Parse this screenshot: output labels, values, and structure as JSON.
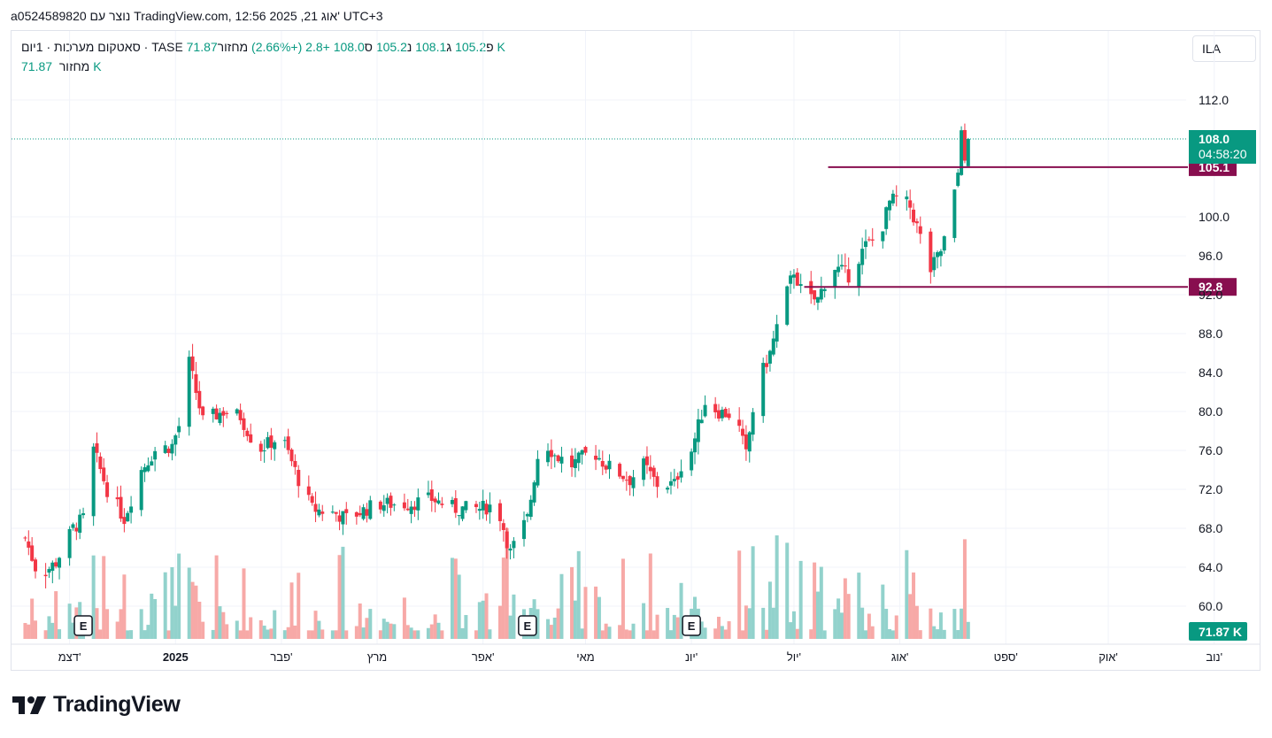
{
  "header": {
    "published_by": "a0524589820 נוצר עם TradingView.com, 12:56 2025 ,21 אוג' UTC+3"
  },
  "legend": {
    "symbol": "סאטקום מערכות · 1יום · TASE",
    "open_label": "פ",
    "open": "105.2",
    "high_label": "ג",
    "high": "108.1",
    "low_label": "נ",
    "low": "105.2",
    "close_label": "ס",
    "close": "108.0",
    "change": "+2.8 (+2.66%)",
    "volume_label": "מחזור",
    "volume": "71.87 K"
  },
  "volume_legend": {
    "label": "מחזור",
    "value": "71.87 K"
  },
  "currency_button": "ILA",
  "branding": {
    "name": "TradingView"
  },
  "colors": {
    "up": "#089981",
    "down": "#f23645",
    "level_line": "#880e4f",
    "volume_up": "#92d2cc",
    "volume_down": "#f7a9a7"
  },
  "chart_data": {
    "type": "candlestick",
    "interval": "1D",
    "y_ticks": [
      "112.0",
      "100.0",
      "96.0",
      "92.0",
      "88.0",
      "84.0",
      "80.0",
      "76.0",
      "72.0",
      "68.0",
      "64.0",
      "60.0"
    ],
    "x_ticks": [
      "דצמ'",
      "2025",
      "פבר'",
      "מרץ",
      "אפר'",
      "מאי",
      "יונ'",
      "יול'",
      "אוג'",
      "ספט'",
      "אוק'",
      "נוב'"
    ],
    "last_price": {
      "value": 108.0,
      "label": "108.0",
      "countdown": "04:58:20"
    },
    "horizontal_lines": [
      {
        "value": 105.1,
        "label": "105.1"
      },
      {
        "value": 92.8,
        "label": "92.8"
      }
    ],
    "earnings_markers": [
      {
        "date": "2024-12-05",
        "label": "E"
      },
      {
        "date": "2025-04-14",
        "label": "E"
      },
      {
        "date": "2025-06-01",
        "label": "E"
      }
    ],
    "volume_last_label": "71.87 K",
    "price_path": [
      [
        "2024-11-18",
        67.0
      ],
      [
        "2024-11-22",
        63.0
      ],
      [
        "2024-11-27",
        64.5
      ],
      [
        "2024-12-02",
        68.0
      ],
      [
        "2024-12-05",
        69.0
      ],
      [
        "2024-12-07",
        77.0
      ],
      [
        "2024-12-12",
        72.0
      ],
      [
        "2024-12-17",
        69.0
      ],
      [
        "2024-12-22",
        74.0
      ],
      [
        "2024-12-26",
        76.0
      ],
      [
        "2024-12-31",
        76.5
      ],
      [
        "2025-01-02",
        78.5
      ],
      [
        "2025-01-05",
        85.0
      ],
      [
        "2025-01-09",
        79.0
      ],
      [
        "2025-01-15",
        80.0
      ],
      [
        "2025-01-20",
        79.5
      ],
      [
        "2025-01-25",
        76.0
      ],
      [
        "2025-02-01",
        77.5
      ],
      [
        "2025-02-06",
        73.0
      ],
      [
        "2025-02-10",
        70.0
      ],
      [
        "2025-02-17",
        69.5
      ],
      [
        "2025-02-20",
        69.0
      ],
      [
        "2025-03-01",
        70.5
      ],
      [
        "2025-03-10",
        70.5
      ],
      [
        "2025-03-17",
        71.0
      ],
      [
        "2025-03-24",
        70.0
      ],
      [
        "2025-03-31",
        70.0
      ],
      [
        "2025-04-05",
        70.5
      ],
      [
        "2025-04-09",
        65.5
      ],
      [
        "2025-04-14",
        69.0
      ],
      [
        "2025-04-18",
        77.5
      ],
      [
        "2025-04-22",
        75.5
      ],
      [
        "2025-04-27",
        74.5
      ],
      [
        "2025-05-03",
        76.0
      ],
      [
        "2025-05-07",
        74.5
      ],
      [
        "2025-05-14",
        73.0
      ],
      [
        "2025-05-18",
        74.5
      ],
      [
        "2025-05-22",
        72.5
      ],
      [
        "2025-05-27",
        72.5
      ],
      [
        "2025-05-29",
        74.5
      ],
      [
        "2025-06-01",
        76.0
      ],
      [
        "2025-06-05",
        81.0
      ],
      [
        "2025-06-09",
        80.0
      ],
      [
        "2025-06-14",
        79.5
      ],
      [
        "2025-06-17",
        75.5
      ],
      [
        "2025-06-20",
        82.5
      ],
      [
        "2025-06-24",
        86.0
      ],
      [
        "2025-06-27",
        90.0
      ],
      [
        "2025-07-01",
        94.5
      ],
      [
        "2025-07-04",
        91.5
      ],
      [
        "2025-07-08",
        91.5
      ],
      [
        "2025-07-12",
        95.0
      ],
      [
        "2025-07-17",
        94.0
      ],
      [
        "2025-07-22",
        97.0
      ],
      [
        "2025-07-26",
        98.0
      ],
      [
        "2025-07-29",
        101.5
      ],
      [
        "2025-08-01",
        102.0
      ],
      [
        "2025-08-04",
        101.0
      ],
      [
        "2025-08-06",
        99.0
      ],
      [
        "2025-08-10",
        94.5
      ],
      [
        "2025-08-13",
        96.5
      ],
      [
        "2025-08-16",
        100.0
      ],
      [
        "2025-08-18",
        104.5
      ],
      [
        "2025-08-19",
        109.5
      ],
      [
        "2025-08-20",
        105.2
      ],
      [
        "2025-08-21",
        108.0
      ]
    ]
  }
}
